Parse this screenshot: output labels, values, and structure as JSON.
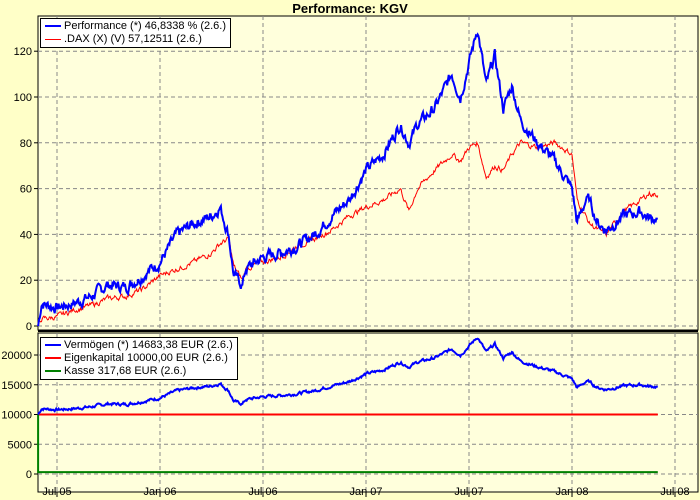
{
  "title": "Performance: KGV",
  "chart_data": [
    {
      "type": "line",
      "title": "Performance: KGV",
      "ylim": [
        0,
        130
      ],
      "yticks": [
        0,
        20,
        40,
        60,
        80,
        100,
        120
      ],
      "x_unit": "months since Jul 2005",
      "xticks": [
        {
          "v": 0,
          "label": "Jul 05"
        },
        {
          "v": 6,
          "label": "Jan 06"
        },
        {
          "v": 12,
          "label": "Jul 06"
        },
        {
          "v": 18,
          "label": "Jan 07"
        },
        {
          "v": 24,
          "label": "Jul 07"
        },
        {
          "v": 30,
          "label": "Jan 08"
        },
        {
          "v": 36,
          "label": "Jul 08"
        }
      ],
      "xlim": [
        -1.1,
        37.3
      ],
      "x": [
        -1.1,
        -0.9,
        0,
        1,
        2,
        3,
        4,
        5,
        6,
        7,
        8,
        9,
        9.5,
        10,
        10.3,
        10.8,
        11,
        12,
        13,
        14,
        15,
        16,
        17,
        18,
        19,
        20,
        20.5,
        21,
        22,
        23,
        23.5,
        24,
        24.5,
        25,
        25.5,
        26,
        26.5,
        27,
        28,
        29,
        30,
        30.3,
        30.8,
        31,
        31.5,
        32,
        33,
        34,
        34.5,
        35
      ],
      "series": [
        {
          "name": "Performance (*) 46,8338 % (2.6.)",
          "color": "#0000ff",
          "values": [
            0,
            10,
            8,
            10,
            13,
            18,
            17,
            22,
            28,
            40,
            45,
            48,
            52,
            40,
            22,
            18,
            25,
            30,
            32,
            35,
            40,
            48,
            55,
            68,
            75,
            88,
            80,
            88,
            95,
            110,
            100,
            115,
            130,
            105,
            118,
            95,
            105,
            90,
            80,
            72,
            60,
            45,
            55,
            55,
            45,
            42,
            48,
            50,
            47,
            47
          ]
        },
        {
          "name": ".DAX (X) (V) 57,12511 (2.6.)",
          "color": "#ff0000",
          "values": [
            0,
            3,
            4,
            7,
            9,
            12,
            13,
            16,
            22,
            25,
            28,
            32,
            36,
            38,
            26,
            20,
            25,
            28,
            30,
            35,
            38,
            42,
            48,
            52,
            55,
            60,
            50,
            60,
            68,
            75,
            72,
            78,
            80,
            65,
            70,
            68,
            75,
            80,
            78,
            80,
            75,
            55,
            48,
            45,
            42,
            40,
            50,
            55,
            58,
            57
          ]
        }
      ]
    },
    {
      "type": "line",
      "ylim": [
        0,
        23500
      ],
      "yticks": [
        0,
        5000,
        10000,
        15000,
        20000
      ],
      "series": [
        {
          "name": "Vermögen (*) 14683,38 EUR (2.6.)",
          "color": "#0000ff",
          "derived_from": "Performance",
          "base": 10000
        },
        {
          "name": "Eigenkapital 10000,00 EUR (2.6.)",
          "color": "#ff0000",
          "constant": 10000
        },
        {
          "name": "Kasse 317,68 EUR (2.6.)",
          "color": "#008000",
          "constant": 317.68
        }
      ]
    }
  ]
}
